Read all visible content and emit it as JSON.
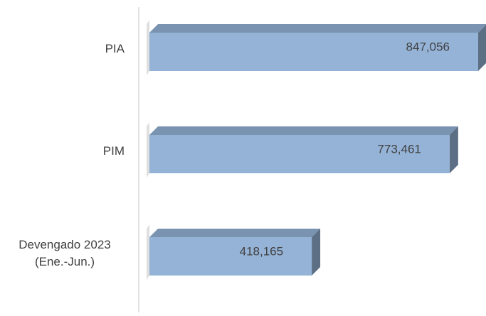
{
  "chart_data": {
    "type": "bar",
    "orientation": "horizontal",
    "categories": [
      "PIA",
      "PIM",
      "Devengado 2023 (Ene.-Jun.)"
    ],
    "values": [
      847056,
      773461,
      418165
    ],
    "value_labels": [
      "847,056",
      "773,461",
      "418,165"
    ],
    "color": "#95b3d7"
  }
}
